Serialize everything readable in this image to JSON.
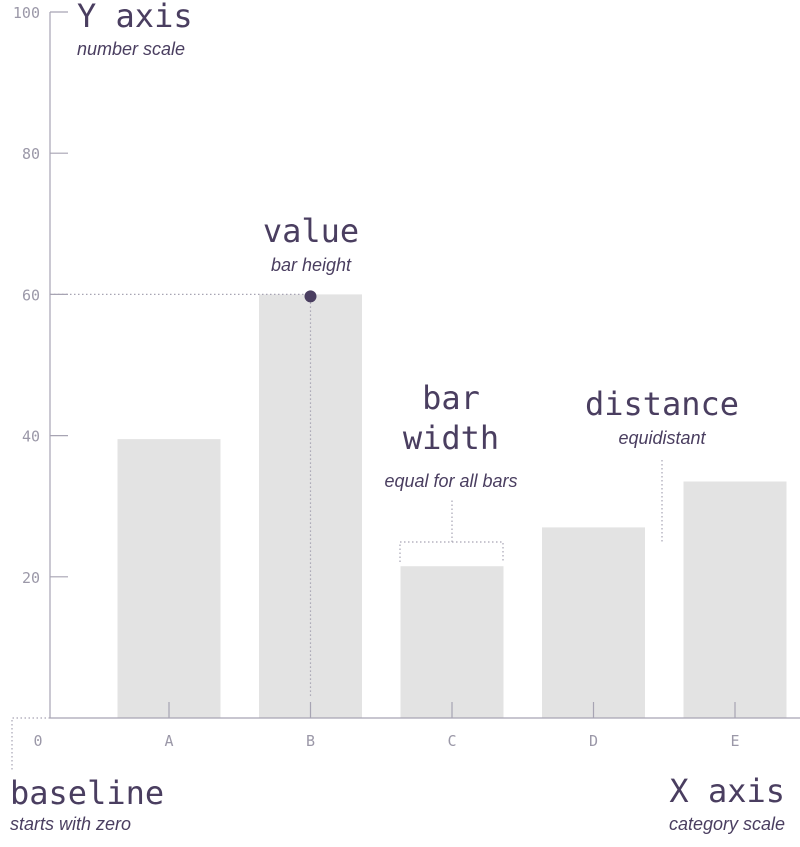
{
  "chart_data": {
    "type": "bar",
    "categories": [
      "A",
      "B",
      "C",
      "D",
      "E"
    ],
    "values": [
      39.5,
      60,
      21.5,
      27,
      33.5
    ],
    "ylim": [
      0,
      100
    ],
    "yticks": [
      "100",
      "80",
      "60",
      "40",
      "20"
    ],
    "zero_label": "0",
    "bar_color": "#e3e3e3",
    "accent_color": "#4a3e60",
    "axis_color": "#a7a4b3"
  },
  "annotations": {
    "y_axis": {
      "title": "Y axis",
      "subtitle": "number scale"
    },
    "value": {
      "title": "value",
      "subtitle": "bar height"
    },
    "bar_width": {
      "title_line1": "bar",
      "title_line2": "width",
      "subtitle": "equal for all bars"
    },
    "distance": {
      "title": "distance",
      "subtitle": "equidistant"
    },
    "baseline": {
      "title": "baseline",
      "subtitle": "starts with zero"
    },
    "x_axis": {
      "title": "X axis",
      "subtitle": "category scale"
    }
  }
}
